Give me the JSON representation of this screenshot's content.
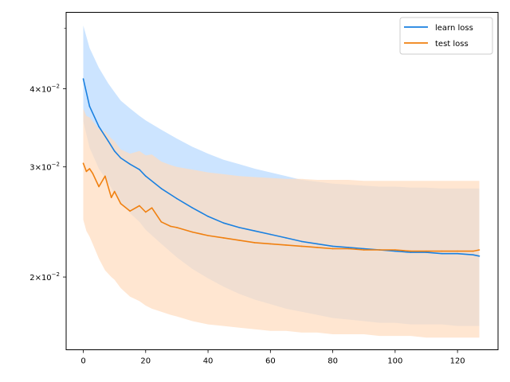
{
  "chart_data": {
    "type": "line",
    "title": "",
    "xlabel": "",
    "ylabel": "",
    "y_scale": "log",
    "xlim": [
      -5.5,
      133
    ],
    "ylim": [
      0.0153,
      0.053
    ],
    "x_ticks": [
      0,
      20,
      40,
      60,
      80,
      100,
      120
    ],
    "x_tick_labels": [
      "0",
      "20",
      "40",
      "60",
      "80",
      "100",
      "120"
    ],
    "y_ticks": [
      0.02,
      0.03,
      0.04
    ],
    "y_tick_labels": [
      {
        "mantissa": "2",
        "times": "×",
        "base": "10",
        "exp": "−2"
      },
      {
        "mantissa": "3",
        "times": "×",
        "base": "10",
        "exp": "−2"
      },
      {
        "mantissa": "4",
        "times": "×",
        "base": "10",
        "exp": "−2"
      }
    ],
    "y_minor_ticks": [
      0.05
    ],
    "grid": false,
    "legend_position": "top-right",
    "series": [
      {
        "name": "learn loss",
        "color": "#1f77b4",
        "line_color": "#1a80e0",
        "band_color": "#cce4ff",
        "x": [
          0,
          2,
          5,
          8,
          10,
          12,
          15,
          18,
          20,
          25,
          30,
          35,
          40,
          45,
          50,
          55,
          60,
          65,
          70,
          75,
          80,
          85,
          90,
          95,
          100,
          105,
          110,
          115,
          120,
          125,
          127
        ],
        "y": [
          0.0415,
          0.0375,
          0.0348,
          0.033,
          0.0318,
          0.031,
          0.0303,
          0.0297,
          0.029,
          0.0277,
          0.0267,
          0.0258,
          0.025,
          0.0244,
          0.024,
          0.0237,
          0.0234,
          0.0231,
          0.0228,
          0.0226,
          0.0224,
          0.0223,
          0.0222,
          0.0221,
          0.022,
          0.0219,
          0.0219,
          0.0218,
          0.0218,
          0.0217,
          0.0216
        ],
        "upper": [
          0.0505,
          0.0465,
          0.0432,
          0.0408,
          0.0395,
          0.0383,
          0.0372,
          0.0362,
          0.0356,
          0.0344,
          0.0333,
          0.0323,
          0.0315,
          0.0308,
          0.0303,
          0.0298,
          0.0294,
          0.029,
          0.0286,
          0.0284,
          0.0282,
          0.0281,
          0.028,
          0.0279,
          0.0279,
          0.0278,
          0.0278,
          0.0277,
          0.0277,
          0.0277,
          0.0277
        ],
        "lower": [
          0.0355,
          0.0322,
          0.0298,
          0.0283,
          0.0272,
          0.0263,
          0.0253,
          0.0245,
          0.0238,
          0.0226,
          0.0215,
          0.0206,
          0.0199,
          0.0193,
          0.0188,
          0.0184,
          0.0181,
          0.0178,
          0.0176,
          0.0174,
          0.0172,
          0.0171,
          0.017,
          0.0169,
          0.0169,
          0.0168,
          0.0168,
          0.0168,
          0.0167,
          0.0167,
          0.0167
        ]
      },
      {
        "name": "test loss",
        "color": "#ff7f0e",
        "line_color": "#f08010",
        "band_color": "#ffdcbe",
        "x": [
          0,
          1,
          2,
          3,
          5,
          7,
          9,
          10,
          12,
          15,
          18,
          20,
          22,
          25,
          28,
          30,
          35,
          40,
          45,
          50,
          55,
          60,
          65,
          70,
          75,
          80,
          85,
          90,
          95,
          100,
          105,
          110,
          115,
          120,
          125,
          127
        ],
        "y": [
          0.0304,
          0.0295,
          0.0298,
          0.0293,
          0.0279,
          0.029,
          0.0268,
          0.0274,
          0.0262,
          0.0255,
          0.026,
          0.0254,
          0.0258,
          0.0245,
          0.0241,
          0.024,
          0.0236,
          0.0233,
          0.0231,
          0.0229,
          0.0227,
          0.0226,
          0.0225,
          0.0224,
          0.0223,
          0.0222,
          0.0222,
          0.0221,
          0.0221,
          0.0221,
          0.022,
          0.022,
          0.022,
          0.022,
          0.022,
          0.0221
        ],
        "upper": [
          0.0372,
          0.0362,
          0.036,
          0.0355,
          0.0345,
          0.0342,
          0.0333,
          0.033,
          0.032,
          0.0315,
          0.0318,
          0.0313,
          0.0314,
          0.0306,
          0.0302,
          0.03,
          0.0297,
          0.0294,
          0.0292,
          0.029,
          0.0289,
          0.0288,
          0.0287,
          0.0287,
          0.0286,
          0.0286,
          0.0286,
          0.0285,
          0.0285,
          0.0285,
          0.0285,
          0.0285,
          0.0285,
          0.0285,
          0.0285,
          0.0285
        ],
        "lower": [
          0.0247,
          0.0237,
          0.0232,
          0.0226,
          0.0214,
          0.0205,
          0.02,
          0.0198,
          0.0192,
          0.0186,
          0.0183,
          0.018,
          0.0178,
          0.0176,
          0.0174,
          0.0173,
          0.017,
          0.0168,
          0.0167,
          0.0166,
          0.0165,
          0.0164,
          0.0164,
          0.0163,
          0.0163,
          0.0162,
          0.0162,
          0.0162,
          0.0161,
          0.0161,
          0.0161,
          0.016,
          0.016,
          0.016,
          0.016,
          0.016
        ]
      }
    ]
  }
}
